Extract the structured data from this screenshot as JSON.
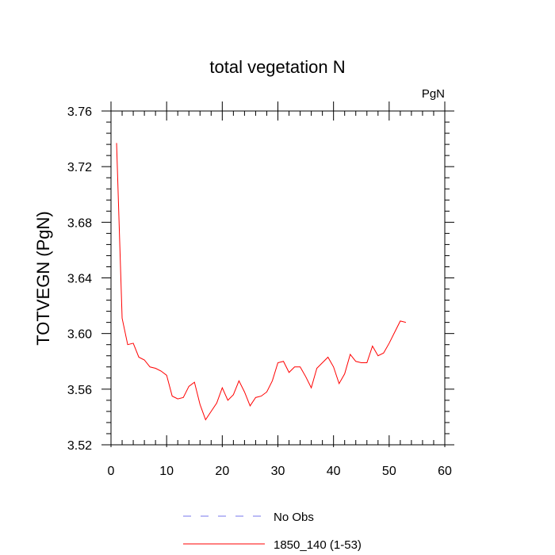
{
  "chart_data": {
    "type": "line",
    "title": "total vegetation N",
    "units": "PgN",
    "xlabel": "",
    "ylabel": "TOTVEGN  (PgN)",
    "xlim": [
      0,
      60
    ],
    "ylim": [
      3.52,
      3.76
    ],
    "xticks": [
      0,
      10,
      20,
      30,
      40,
      50,
      60
    ],
    "yticks": [
      3.52,
      3.56,
      3.6,
      3.64,
      3.68,
      3.72,
      3.76
    ],
    "ytick_labels": [
      "3.52",
      "3.56",
      "3.60",
      "3.64",
      "3.68",
      "3.72",
      "3.76"
    ],
    "xminor_step": 2,
    "yminor_step": 0.008,
    "grid": false,
    "legend_position": "bottom-center",
    "series": [
      {
        "name": "No Obs",
        "color": "#7777ee",
        "dash": true,
        "x": [],
        "y": []
      },
      {
        "name": "1850_140 (1-53)",
        "color": "#ff0000",
        "dash": false,
        "x": [
          1,
          2,
          3,
          4,
          5,
          6,
          7,
          8,
          9,
          10,
          11,
          12,
          13,
          14,
          15,
          16,
          17,
          18,
          19,
          20,
          21,
          22,
          23,
          24,
          25,
          26,
          27,
          28,
          29,
          30,
          31,
          32,
          33,
          34,
          35,
          36,
          37,
          38,
          39,
          40,
          41,
          42,
          43,
          44,
          45,
          46,
          47,
          48,
          49,
          50,
          51,
          52,
          53
        ],
        "y": [
          3.737,
          3.611,
          3.592,
          3.593,
          3.583,
          3.581,
          3.576,
          3.575,
          3.573,
          3.57,
          3.555,
          3.553,
          3.554,
          3.562,
          3.565,
          3.549,
          3.538,
          3.544,
          3.55,
          3.561,
          3.552,
          3.556,
          3.566,
          3.558,
          3.548,
          3.554,
          3.555,
          3.558,
          3.566,
          3.579,
          3.58,
          3.572,
          3.576,
          3.576,
          3.569,
          3.561,
          3.575,
          3.579,
          3.583,
          3.576,
          3.564,
          3.571,
          3.585,
          3.58,
          3.579,
          3.579,
          3.591,
          3.584,
          3.586,
          3.593,
          3.601,
          3.609,
          3.608
        ]
      }
    ]
  }
}
